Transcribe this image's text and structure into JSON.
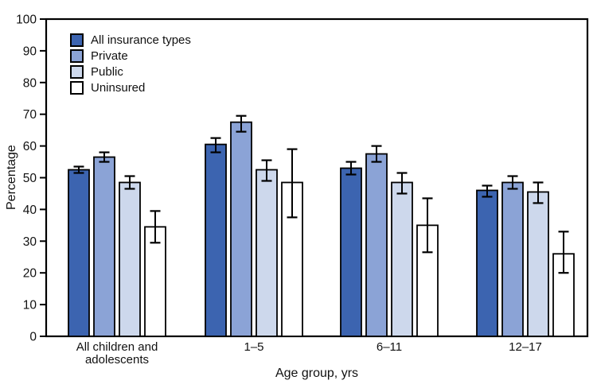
{
  "chart_data": {
    "type": "bar",
    "title": "",
    "xlabel": "Age group, yrs",
    "ylabel": "Percentage",
    "ylim": [
      0,
      100
    ],
    "ytick_interval": 10,
    "grid": false,
    "legend_position": "top-left",
    "error_bars": true,
    "categories": [
      "All children and adolescents",
      "1–5",
      "6–11",
      "12–17"
    ],
    "series": [
      {
        "name": "All insurance types",
        "color": "#3C64B0",
        "values": [
          52.5,
          60.5,
          53,
          46
        ],
        "ci_low": [
          51.5,
          58,
          51,
          44
        ],
        "ci_high": [
          53.5,
          62.5,
          55,
          47.5
        ]
      },
      {
        "name": "Private",
        "color": "#8BA3D6",
        "values": [
          56.5,
          67.5,
          57.5,
          48.5
        ],
        "ci_low": [
          55,
          64.5,
          55,
          46.5
        ],
        "ci_high": [
          58,
          69.5,
          60,
          50.5
        ]
      },
      {
        "name": "Public",
        "color": "#CDD8EC",
        "values": [
          48.5,
          52.5,
          48.5,
          45.5
        ],
        "ci_low": [
          46.5,
          49,
          45,
          42
        ],
        "ci_high": [
          50.5,
          55.5,
          51.5,
          48.5
        ]
      },
      {
        "name": "Uninsured",
        "color": "#FFFFFF",
        "values": [
          34.5,
          48.5,
          35,
          26
        ],
        "ci_low": [
          29.5,
          37.5,
          26.5,
          20
        ],
        "ci_high": [
          39.5,
          59,
          43.5,
          33
        ]
      }
    ],
    "axis_color": "#000000"
  }
}
